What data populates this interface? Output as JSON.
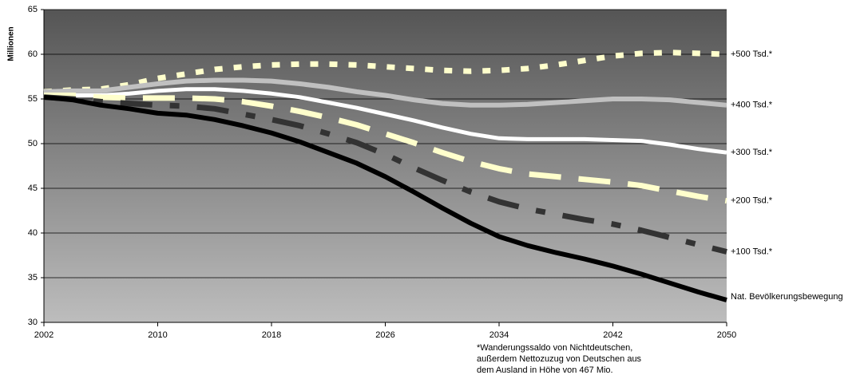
{
  "chart_data": {
    "type": "line",
    "y_label": "Millionen",
    "x": [
      2002,
      2004,
      2006,
      2008,
      2010,
      2012,
      2014,
      2016,
      2018,
      2020,
      2022,
      2024,
      2026,
      2028,
      2030,
      2032,
      2034,
      2036,
      2038,
      2040,
      2042,
      2044,
      2046,
      2048,
      2050
    ],
    "xlim": [
      2002,
      2050
    ],
    "xticks": [
      2002,
      2010,
      2018,
      2026,
      2034,
      2042,
      2050
    ],
    "ylim": [
      30,
      65
    ],
    "yticks": [
      30,
      35,
      40,
      45,
      50,
      55,
      60,
      65
    ],
    "grid": true,
    "series": [
      {
        "name": "+500 Tsd.*",
        "color": "#ffffcc",
        "dash": "10,14",
        "values": [
          55.8,
          56.0,
          56.1,
          56.6,
          57.3,
          57.8,
          58.3,
          58.6,
          58.8,
          58.9,
          58.9,
          58.8,
          58.6,
          58.4,
          58.2,
          58.1,
          58.2,
          58.4,
          58.8,
          59.3,
          59.8,
          60.1,
          60.2,
          60.1,
          60.0
        ]
      },
      {
        "name": "+400 Tsd.*",
        "color": "#c0c0c0",
        "values": [
          55.8,
          55.9,
          55.9,
          56.3,
          56.7,
          57.0,
          57.1,
          57.1,
          57.0,
          56.7,
          56.3,
          55.8,
          55.4,
          54.9,
          54.5,
          54.3,
          54.3,
          54.4,
          54.6,
          54.8,
          55.0,
          55.0,
          54.9,
          54.6,
          54.3
        ]
      },
      {
        "name": "+300 Tsd.*",
        "color": "#ffffff",
        "values": [
          55.4,
          55.4,
          55.4,
          55.6,
          55.9,
          56.1,
          56.1,
          55.9,
          55.6,
          55.2,
          54.6,
          54.0,
          53.3,
          52.6,
          51.8,
          51.1,
          50.6,
          50.5,
          50.5,
          50.5,
          50.4,
          50.3,
          49.9,
          49.4,
          49.0
        ]
      },
      {
        "name": "+200 Tsd.*",
        "color": "#ffffcc",
        "dash": "40,22",
        "values": [
          55.4,
          55.4,
          55.2,
          55.1,
          55.1,
          55.1,
          55.0,
          54.7,
          54.2,
          53.6,
          52.9,
          52.1,
          51.1,
          50.1,
          49.0,
          48.0,
          47.2,
          46.6,
          46.3,
          46.0,
          45.7,
          45.3,
          44.7,
          44.1,
          43.6
        ]
      },
      {
        "name": "+100 Tsd.*",
        "color": "#333333",
        "dash": "40,22,12,22",
        "values": [
          55.2,
          55.0,
          54.7,
          54.5,
          54.3,
          54.2,
          53.9,
          53.3,
          52.7,
          52.0,
          51.1,
          50.1,
          48.8,
          47.3,
          45.9,
          44.6,
          43.5,
          42.7,
          42.1,
          41.5,
          41.0,
          40.3,
          39.5,
          38.7,
          37.9
        ]
      },
      {
        "name": "Nat. Bevölkerungsbewegung",
        "color": "#000000",
        "values": [
          55.2,
          54.9,
          54.3,
          53.9,
          53.4,
          53.2,
          52.7,
          52.0,
          51.2,
          50.2,
          49.0,
          47.8,
          46.3,
          44.6,
          42.8,
          41.1,
          39.6,
          38.6,
          37.8,
          37.1,
          36.3,
          35.4,
          34.4,
          33.4,
          32.5
        ]
      }
    ],
    "note": [
      "*Wanderungssaldo von Nichtdeutschen,",
      "außerdem Nettozuzug von Deutschen aus",
      "dem Ausland in Höhe von 467 Mio."
    ]
  }
}
